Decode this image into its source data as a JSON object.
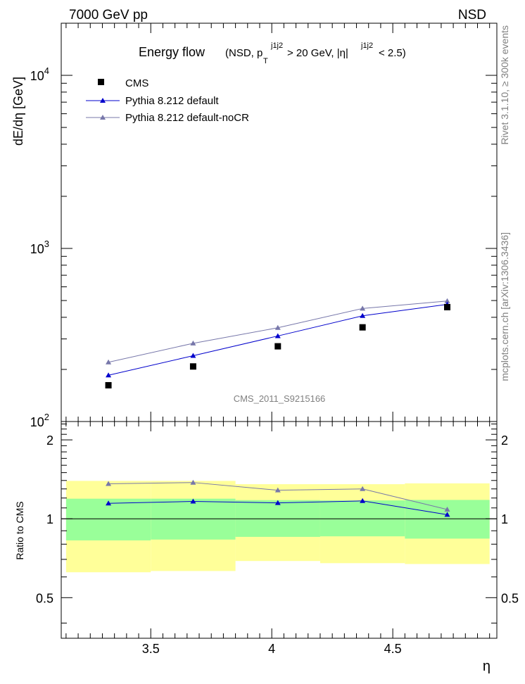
{
  "header": {
    "left": "7000 GeV pp",
    "right": "NSD"
  },
  "side_labels": {
    "rivet": "Rivet 3.1.10, ≥ 300k events",
    "mcplots": "mcplots.cern.ch [arXiv:1306.3436]"
  },
  "watermark": "CMS_2011_S9215166",
  "chart_data": [
    {
      "type": "line",
      "panel": "main",
      "title_main": "Energy flow",
      "title_open": "(NSD, p",
      "title_sup1": "j1j2",
      "title_sub1": "T",
      "title_mid": " > 20 GeV, |η|",
      "title_sup2": "j1j2",
      "title_close": " < 2.5)",
      "ylabel": "dE/dη [GeV]",
      "yscale": "log",
      "ylim": [
        100,
        20000
      ],
      "xlim": [
        3.13,
        4.93
      ],
      "ytick_labels": [
        {
          "value": 100,
          "base": "10",
          "exp": "2"
        },
        {
          "value": 1000,
          "base": "10",
          "exp": "3"
        },
        {
          "value": 10000,
          "base": "10",
          "exp": "4"
        }
      ],
      "x": [
        3.325,
        3.675,
        4.025,
        4.375,
        4.725
      ],
      "series": [
        {
          "name": "CMS",
          "marker": "square",
          "color": "#000000",
          "values": [
            162,
            208,
            272,
            350,
            458
          ]
        },
        {
          "name": "Pythia 8.212 default",
          "marker": "triangle",
          "color": "#0000cc",
          "values": [
            185,
            240,
            312,
            408,
            475
          ]
        },
        {
          "name": "Pythia 8.212 default-noCR",
          "marker": "triangle",
          "color": "#7777aa",
          "values": [
            220,
            283,
            348,
            450,
            497
          ]
        }
      ],
      "legend_position": "top-left"
    },
    {
      "type": "line",
      "panel": "ratio",
      "ylabel": "Ratio to CMS",
      "xlabel": "η",
      "ylim": [
        0.35,
        2.35
      ],
      "xlim": [
        3.13,
        4.93
      ],
      "xtick_labels": [
        "3.5",
        "4",
        "4.5"
      ],
      "xtick_values": [
        3.5,
        4.0,
        4.5
      ],
      "ytick_labels": [
        "0.5",
        "1",
        "2"
      ],
      "ytick_values": [
        0.5,
        1.0,
        2.0
      ],
      "bins": [
        {
          "lo": 3.15,
          "hi": 3.5,
          "band_green": [
            0.827,
            1.193
          ],
          "band_yellow": [
            0.625,
            1.395
          ]
        },
        {
          "lo": 3.5,
          "hi": 3.85,
          "band_green": [
            0.833,
            1.193
          ],
          "band_yellow": [
            0.632,
            1.395
          ]
        },
        {
          "lo": 3.85,
          "hi": 4.2,
          "band_green": [
            0.853,
            1.178
          ],
          "band_yellow": [
            0.69,
            1.355
          ]
        },
        {
          "lo": 4.2,
          "hi": 4.55,
          "band_green": [
            0.857,
            1.175
          ],
          "band_yellow": [
            0.677,
            1.355
          ]
        },
        {
          "lo": 4.55,
          "hi": 4.9,
          "band_green": [
            0.84,
            1.18
          ],
          "band_yellow": [
            0.672,
            1.365
          ]
        }
      ],
      "x": [
        3.325,
        3.675,
        4.025,
        4.375,
        4.725
      ],
      "series": [
        {
          "name": "Pythia 8.212 default",
          "color": "#0000cc",
          "values": [
            1.145,
            1.165,
            1.15,
            1.17,
            1.037
          ]
        },
        {
          "name": "Pythia 8.212 default-noCR",
          "color": "#7777aa",
          "values": [
            1.36,
            1.375,
            1.285,
            1.3,
            1.085
          ]
        }
      ],
      "reference_line": 1.0
    }
  ]
}
